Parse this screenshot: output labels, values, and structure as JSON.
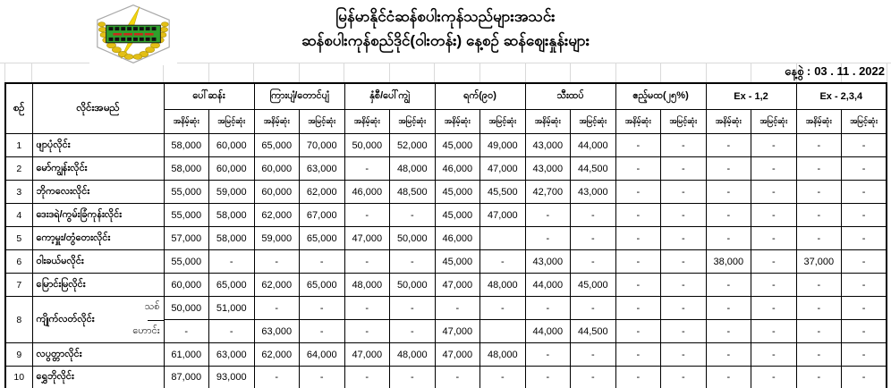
{
  "header": {
    "title_line1": "မြန်မာနိုင်ငံဆန်စပါးကုန်သည်များအသင်း",
    "title_line2": "ဆန်စပါးကုန်စည်ဒိုင်(ဝါးတန်း) နေ့စဉ် ဆန်ဈေးနှုန်းများ",
    "logo_name": "rice-traders-association-emblem",
    "date_label": "နေ့စွဲ :",
    "date_value": "03 . 11 . 2022"
  },
  "table": {
    "col_no_label": "စဉ်",
    "col_name_label": "လိုင်းအမည်",
    "sub_min": "အနိမ့်ဆုံး",
    "sub_max": "အမြင့်ဆုံး",
    "groups": [
      "ပေါ်ဆန်း",
      "ကြားပျံ/တောင်ပျံ",
      "နှံစီ/ပေါ်ကျွဲ",
      "ရက်(၉၀)",
      "သီးထပ်",
      "ဧည့်မထ(၂၅%)",
      "Ex - 1,2",
      "Ex - 2,3,4"
    ],
    "rows": [
      {
        "no": "1",
        "name": "ဖျာပုံလိုင်း",
        "values": [
          "58,000",
          "60,000",
          "65,000",
          "70,000",
          "50,000",
          "52,000",
          "45,000",
          "49,000",
          "43,000",
          "44,000",
          "-",
          "-",
          "-",
          "-",
          "-",
          "-"
        ]
      },
      {
        "no": "2",
        "name": "မော်ကျွန်းလိုင်း",
        "values": [
          "58,000",
          "60,000",
          "60,000",
          "63,000",
          "-",
          "48,000",
          "46,000",
          "47,000",
          "43,000",
          "44,500",
          "-",
          "-",
          "-",
          "-",
          "-",
          "-"
        ]
      },
      {
        "no": "3",
        "name": "ဘိုကလေးလိုင်း",
        "values": [
          "55,000",
          "59,000",
          "60,000",
          "62,000",
          "46,000",
          "48,500",
          "45,000",
          "45,500",
          "42,700",
          "43,000",
          "-",
          "-",
          "-",
          "-",
          "-",
          "-"
        ]
      },
      {
        "no": "4",
        "name": "ဒေးဒရဲ/ကွမ်းခြံကုန်းလိုင်း",
        "values": [
          "55,000",
          "58,000",
          "62,000",
          "67,000",
          "-",
          "-",
          "45,000",
          "47,000",
          "-",
          "-",
          "-",
          "-",
          "-",
          "-",
          "-",
          "-"
        ]
      },
      {
        "no": "5",
        "name": "ကော့မှူး/တွံတေးလိုင်း",
        "values": [
          "57,000",
          "58,000",
          "59,000",
          "65,000",
          "47,000",
          "50,000",
          "46,000",
          "",
          "-",
          "-",
          "-",
          "-",
          "-",
          "-",
          "-",
          "-"
        ]
      },
      {
        "no": "6",
        "name": "ဝါးခယ်မလိုင်း",
        "values": [
          "55,000",
          "-",
          "-",
          "-",
          "-",
          "-",
          "45,000",
          "-",
          "43,000",
          "-",
          "-",
          "-",
          "38,000",
          "-",
          "37,000",
          "-"
        ]
      },
      {
        "no": "7",
        "name": "မြောင်းမြလိုင်း",
        "values": [
          "60,000",
          "65,000",
          "62,000",
          "65,000",
          "48,000",
          "50,000",
          "47,000",
          "48,000",
          "44,000",
          "45,000",
          "-",
          "-",
          "-",
          "-",
          "-",
          "-"
        ]
      },
      {
        "no": "8",
        "name": "ကျိုက်လတ်လိုင်း",
        "sub_rows": [
          {
            "label": "သစ်",
            "values": [
              "50,000",
              "51,000",
              "-",
              "-",
              "-",
              "-",
              "-",
              "-",
              "-",
              "-",
              "-",
              "-",
              "-",
              "-",
              "-",
              "-"
            ]
          },
          {
            "label": "ဟောင်း",
            "values": [
              "-",
              "-",
              "63,000",
              "-",
              "-",
              "-",
              "47,000",
              "",
              "44,000",
              "44,500",
              "-",
              "-",
              "-",
              "-",
              "-",
              "-"
            ]
          }
        ]
      },
      {
        "no": "9",
        "name": "လပွတ္တာလိုင်း",
        "values": [
          "61,000",
          "63,000",
          "62,000",
          "64,000",
          "47,000",
          "48,000",
          "47,000",
          "48,000",
          "-",
          "-",
          "-",
          "-",
          "-",
          "-",
          "-",
          "-"
        ]
      },
      {
        "no": "10",
        "name": "ရွှေဘိုလိုင်း",
        "values": [
          "87,000",
          "93,000",
          "-",
          "-",
          "-",
          "-",
          "-",
          "-",
          "-",
          "-",
          "-",
          "-",
          "-",
          "-",
          "-",
          "-"
        ]
      }
    ]
  },
  "colors": {
    "border": "#000000",
    "faint_grid": "#d9d9d9",
    "logo_gold": "#e3bf16",
    "logo_green": "#2fa02c",
    "logo_red": "#c92a1d"
  }
}
